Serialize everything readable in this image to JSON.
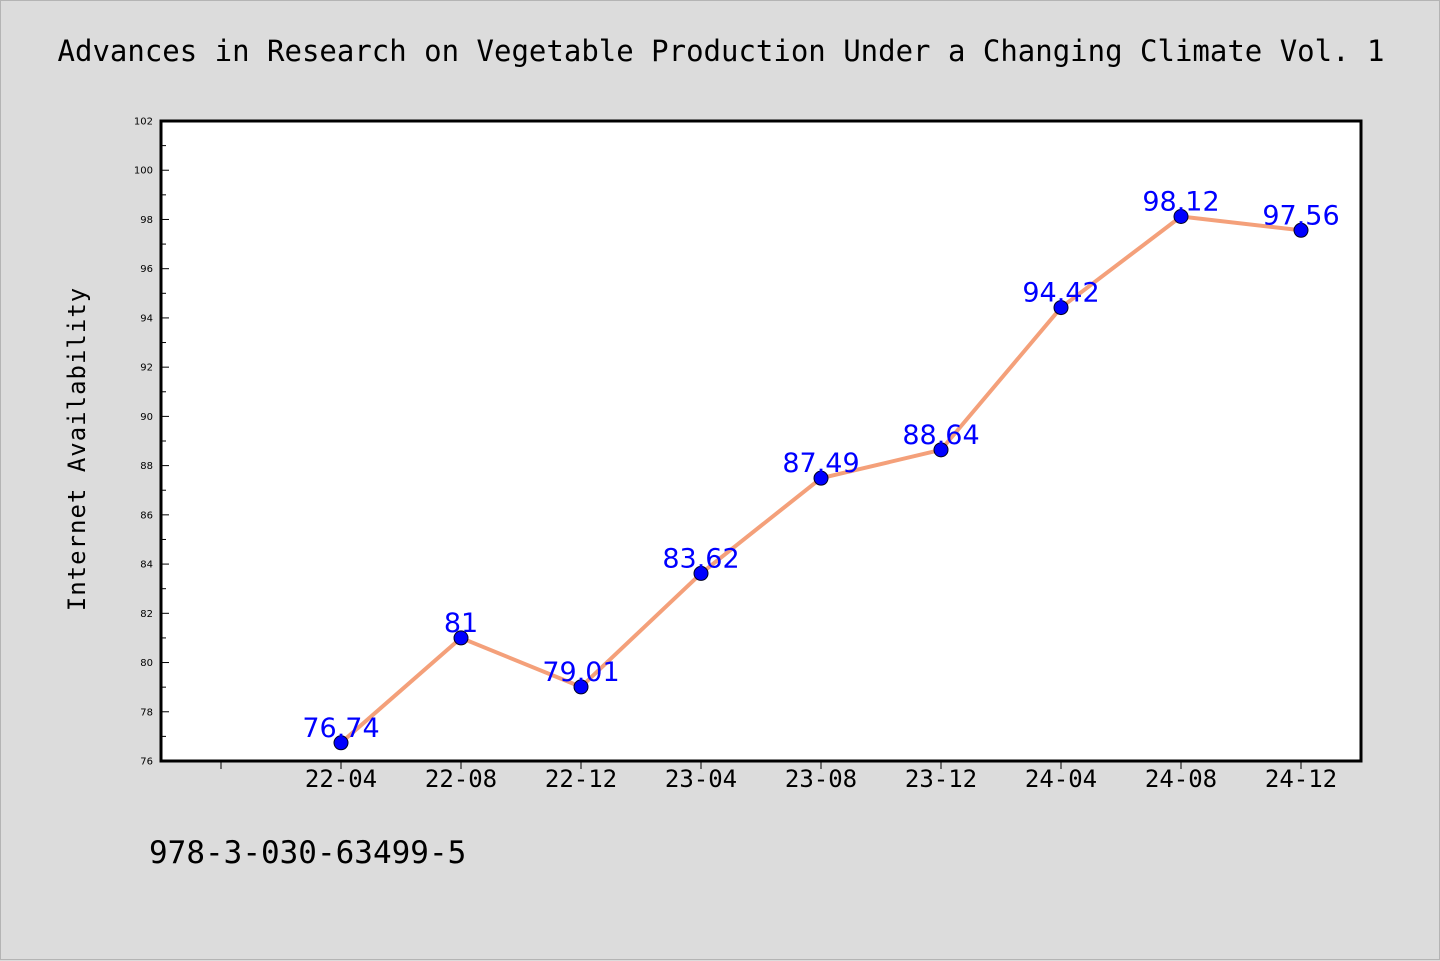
{
  "title": "Advances in Research on Vegetable Production Under a Changing Climate Vol. 1",
  "footer_text": "978-3-030-63499-5",
  "colors": {
    "background": "#dcdcdc",
    "plot_bg": "#ffffff",
    "line": "#f4a07a",
    "marker": "#0000ff",
    "label": "#0000ff"
  },
  "chart_data": {
    "type": "line",
    "ylabel": "Internet Availability",
    "xlabel": "",
    "categories": [
      "22-04",
      "22-08",
      "22-12",
      "23-04",
      "23-08",
      "23-12",
      "24-04",
      "24-08",
      "24-12"
    ],
    "series": [
      {
        "values": [
          76.74,
          81,
          79.01,
          83.62,
          87.49,
          88.64,
          94.42,
          98.12,
          97.56
        ],
        "labels": [
          "76.74",
          "81",
          "79.01",
          "83.62",
          "87.49",
          "88.64",
          "94.42",
          "98.12",
          "97.56"
        ]
      }
    ],
    "ylim": [
      76,
      102
    ],
    "yticks": [
      "76",
      "78",
      "80",
      "82",
      "84",
      "86",
      "88",
      "90",
      "92",
      "94",
      "96",
      "98",
      "100",
      "102"
    ],
    "grid": false,
    "legend": "none"
  }
}
